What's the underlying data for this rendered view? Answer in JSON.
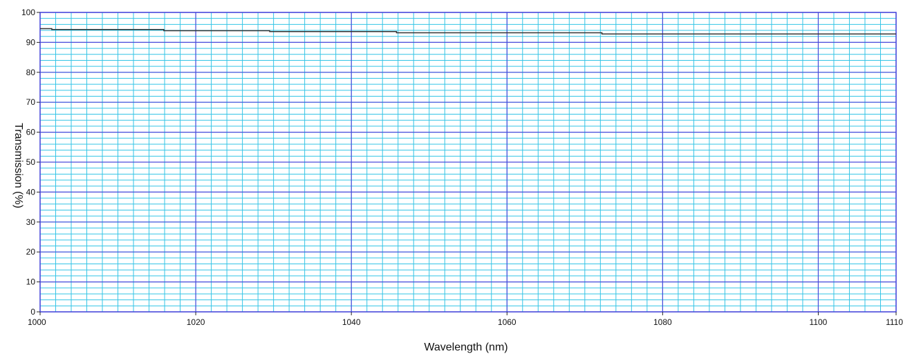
{
  "chart_data": {
    "type": "line",
    "title": "",
    "xlabel": "Wavelength (nm)",
    "ylabel": "Transmission (%)",
    "xlim": [
      1000,
      1110
    ],
    "ylim": [
      0,
      100
    ],
    "x_ticks": [
      1000,
      1020,
      1040,
      1060,
      1080,
      1100,
      1110
    ],
    "x_tick_labels": [
      "1000",
      "1020",
      "1040",
      "1060",
      "1080",
      "1100",
      "1110"
    ],
    "y_ticks": [
      0,
      10,
      20,
      30,
      40,
      50,
      60,
      70,
      80,
      90,
      100
    ],
    "y_tick_labels": [
      "0",
      "10",
      "20",
      "30",
      "40",
      "50",
      "60",
      "70",
      "80",
      "90",
      "100"
    ],
    "grid": true,
    "legend": "none",
    "series": [
      {
        "x": [
          1000,
          1001.5,
          1001.5,
          1015.9,
          1015.9,
          1029.5,
          1029.5,
          1045.8,
          1045.8,
          1072.2,
          1072.2,
          1110
        ],
        "y": [
          94.6,
          94.6,
          94.3,
          94.3,
          93.9,
          93.9,
          93.6,
          93.6,
          93.2,
          93.2,
          92.8,
          92.8
        ]
      }
    ],
    "colors": {
      "line": "#333333",
      "major_grid": "#4a4adb",
      "minor_grid": "#33c4e6",
      "axis": "#4a4adb"
    }
  }
}
